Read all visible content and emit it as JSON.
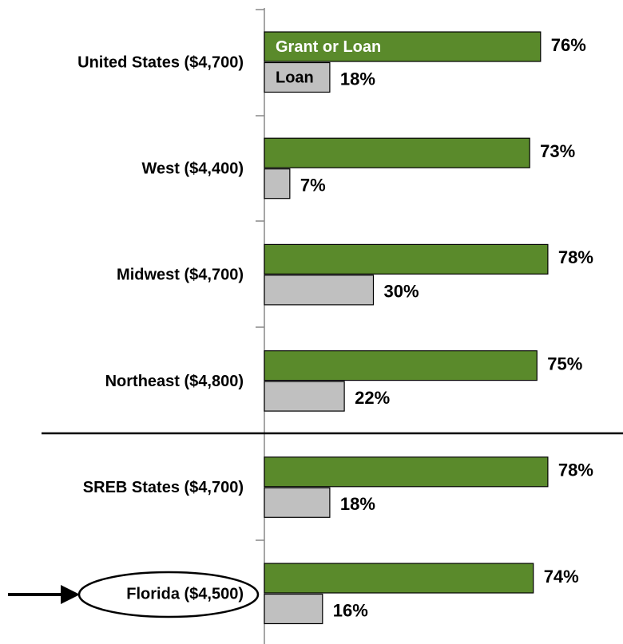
{
  "chart_data": {
    "type": "hbar",
    "categories": [
      "United States ($4,700)",
      "West ($4,400)",
      "Midwest ($4,700)",
      "Northeast ($4,800)",
      "SREB States ($4,700)",
      "Florida ($4,500)"
    ],
    "series": [
      {
        "name": "Grant or Loan",
        "color": "#5a8a2b",
        "values": [
          76,
          73,
          78,
          75,
          78,
          74
        ],
        "value_labels": [
          "76%",
          "73%",
          "78%",
          "75%",
          "78%",
          "74%"
        ]
      },
      {
        "name": "Loan",
        "color": "#c0c0c0",
        "values": [
          18,
          7,
          30,
          22,
          18,
          16
        ],
        "value_labels": [
          "18%",
          "7%",
          "30%",
          "22%",
          "18%",
          "16%"
        ]
      }
    ],
    "xlim": [
      0,
      100
    ],
    "legend": "inside-bars"
  }
}
